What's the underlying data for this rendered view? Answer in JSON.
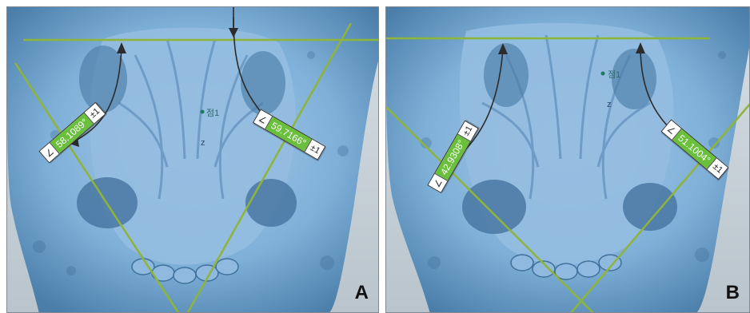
{
  "panels": [
    {
      "letter": "A",
      "angles": [
        {
          "value": "58.1089°",
          "err": "±1"
        },
        {
          "value": "59.7166°",
          "err": "±1"
        }
      ],
      "point_label": "점1",
      "axis_label": "z"
    },
    {
      "letter": "B",
      "angles": [
        {
          "value": "42.9308°",
          "err": "±1"
        },
        {
          "value": "51.1004°",
          "err": "±1"
        }
      ],
      "point_label": "점1",
      "axis_label": "z"
    }
  ],
  "colors": {
    "tissue": "#7fb0d8",
    "tissue_dark": "#3f6f9b",
    "line": "#8fb43a",
    "label_green": "#6abf3c",
    "arrow": "#2c2c2c"
  }
}
